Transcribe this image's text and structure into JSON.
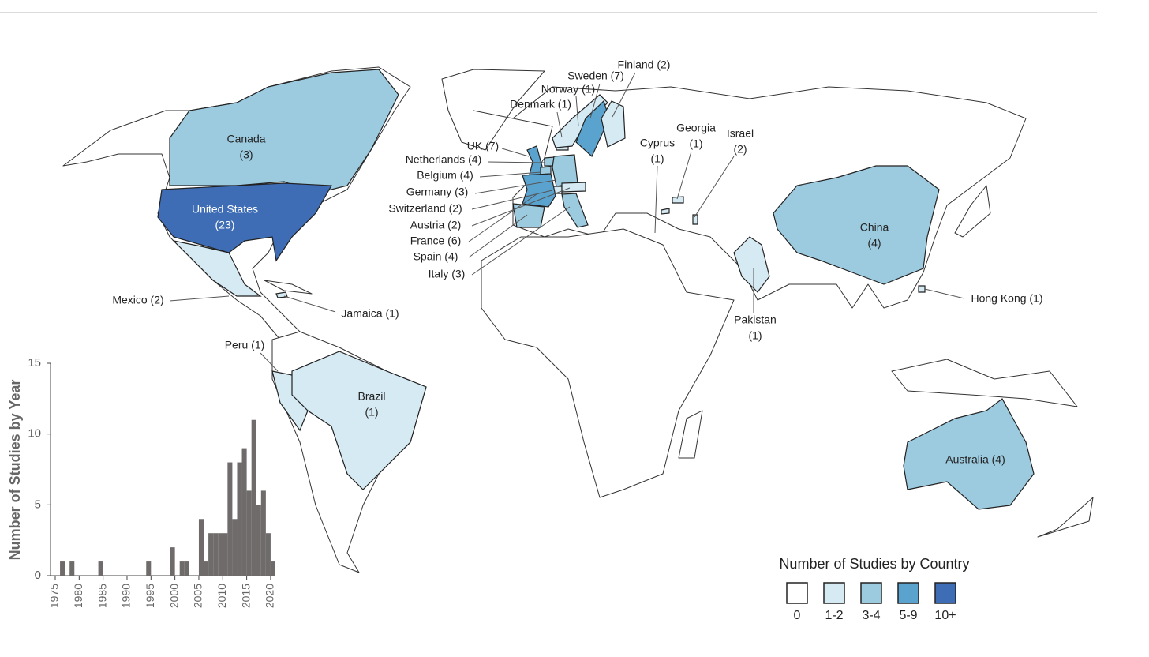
{
  "map": {
    "countries": [
      {
        "label": [
          "Canada",
          "(3)"
        ],
        "count": 3,
        "color": "#9ccbe0"
      },
      {
        "label": [
          "United States",
          "(23)"
        ],
        "count": 23,
        "color": "#3f6db5"
      },
      {
        "label": [
          "Mexico (2)"
        ],
        "count": 2,
        "color": "#d6eaf3"
      },
      {
        "label": [
          "Jamaica (1)"
        ],
        "count": 1,
        "color": "#d6eaf3"
      },
      {
        "label": [
          "Peru (1)"
        ],
        "count": 1,
        "color": "#d6eaf3"
      },
      {
        "label": [
          "Brazil",
          "(1)"
        ],
        "count": 1,
        "color": "#d6eaf3"
      },
      {
        "label": [
          "UK (7)"
        ],
        "count": 7,
        "color": "#5ba3cf"
      },
      {
        "label": [
          "Netherlands (4)"
        ],
        "count": 4,
        "color": "#9ccbe0"
      },
      {
        "label": [
          "Belgium (4)"
        ],
        "count": 4,
        "color": "#9ccbe0"
      },
      {
        "label": [
          "Germany (3)"
        ],
        "count": 3,
        "color": "#9ccbe0"
      },
      {
        "label": [
          "Switzerland (2)"
        ],
        "count": 2,
        "color": "#d6eaf3"
      },
      {
        "label": [
          "Austria (2)"
        ],
        "count": 2,
        "color": "#d6eaf3"
      },
      {
        "label": [
          "France (6)"
        ],
        "count": 6,
        "color": "#5ba3cf"
      },
      {
        "label": [
          "Spain (4)"
        ],
        "count": 4,
        "color": "#9ccbe0"
      },
      {
        "label": [
          "Italy (3)"
        ],
        "count": 3,
        "color": "#9ccbe0"
      },
      {
        "label": [
          "Denmark (1)"
        ],
        "count": 1,
        "color": "#d6eaf3"
      },
      {
        "label": [
          "Norway (1)"
        ],
        "count": 1,
        "color": "#d6eaf3"
      },
      {
        "label": [
          "Sweden (7)"
        ],
        "count": 7,
        "color": "#5ba3cf"
      },
      {
        "label": [
          "Finland (2)"
        ],
        "count": 2,
        "color": "#d6eaf3"
      },
      {
        "label": [
          "Cyprus",
          "(1)"
        ],
        "count": 1,
        "color": "#d6eaf3"
      },
      {
        "label": [
          "Georgia",
          "(1)"
        ],
        "count": 1,
        "color": "#d6eaf3"
      },
      {
        "label": [
          "Israel",
          "(2)"
        ],
        "count": 2,
        "color": "#d6eaf3"
      },
      {
        "label": [
          "China",
          "(4)"
        ],
        "count": 4,
        "color": "#9ccbe0"
      },
      {
        "label": [
          "Hong Kong (1)"
        ],
        "count": 1,
        "color": "#d6eaf3"
      },
      {
        "label": [
          "Pakistan",
          "(1)"
        ],
        "count": 1,
        "color": "#d6eaf3"
      },
      {
        "label": [
          "Australia (4)"
        ],
        "count": 4,
        "color": "#9ccbe0"
      }
    ]
  },
  "legend": {
    "title": "Number of Studies by Country",
    "classes": [
      {
        "label": "0",
        "color": "#ffffff"
      },
      {
        "label": "1-2",
        "color": "#d6eaf3"
      },
      {
        "label": "3-4",
        "color": "#9ccbe0"
      },
      {
        "label": "5-9",
        "color": "#5ba3cf"
      },
      {
        "label": "10+",
        "color": "#3f6db5"
      }
    ]
  },
  "chart_data": {
    "type": "histogram",
    "ylabel": "Number of Studies by Year",
    "bins": [
      1976,
      1977,
      1978,
      1979,
      1980,
      1981,
      1982,
      1983,
      1984,
      1985,
      1986,
      1987,
      1988,
      1989,
      1990,
      1991,
      1992,
      1993,
      1994,
      1995,
      1996,
      1997,
      1998,
      1999,
      2000,
      2001,
      2002,
      2003,
      2004,
      2005,
      2006,
      2007,
      2008,
      2009,
      2010,
      2011,
      2012,
      2013,
      2014,
      2015,
      2016,
      2017,
      2018,
      2019,
      2020,
      2021
    ],
    "values": [
      1,
      0,
      1,
      0,
      0,
      0,
      0,
      0,
      1,
      0,
      0,
      0,
      0,
      0,
      0,
      0,
      0,
      0,
      1,
      0,
      0,
      0,
      0,
      2,
      0,
      1,
      1,
      0,
      0,
      4,
      1,
      3,
      3,
      3,
      3,
      8,
      4,
      8,
      9,
      6,
      11,
      5,
      6,
      3,
      1
    ],
    "color": "#6f6b6b",
    "xlim": [
      1975,
      2021
    ],
    "xticks": [
      1975,
      1980,
      1985,
      1990,
      1995,
      2000,
      2005,
      2010,
      2015,
      2020
    ],
    "ylim": [
      0,
      15
    ],
    "yticks": [
      0,
      5,
      10,
      15
    ]
  }
}
